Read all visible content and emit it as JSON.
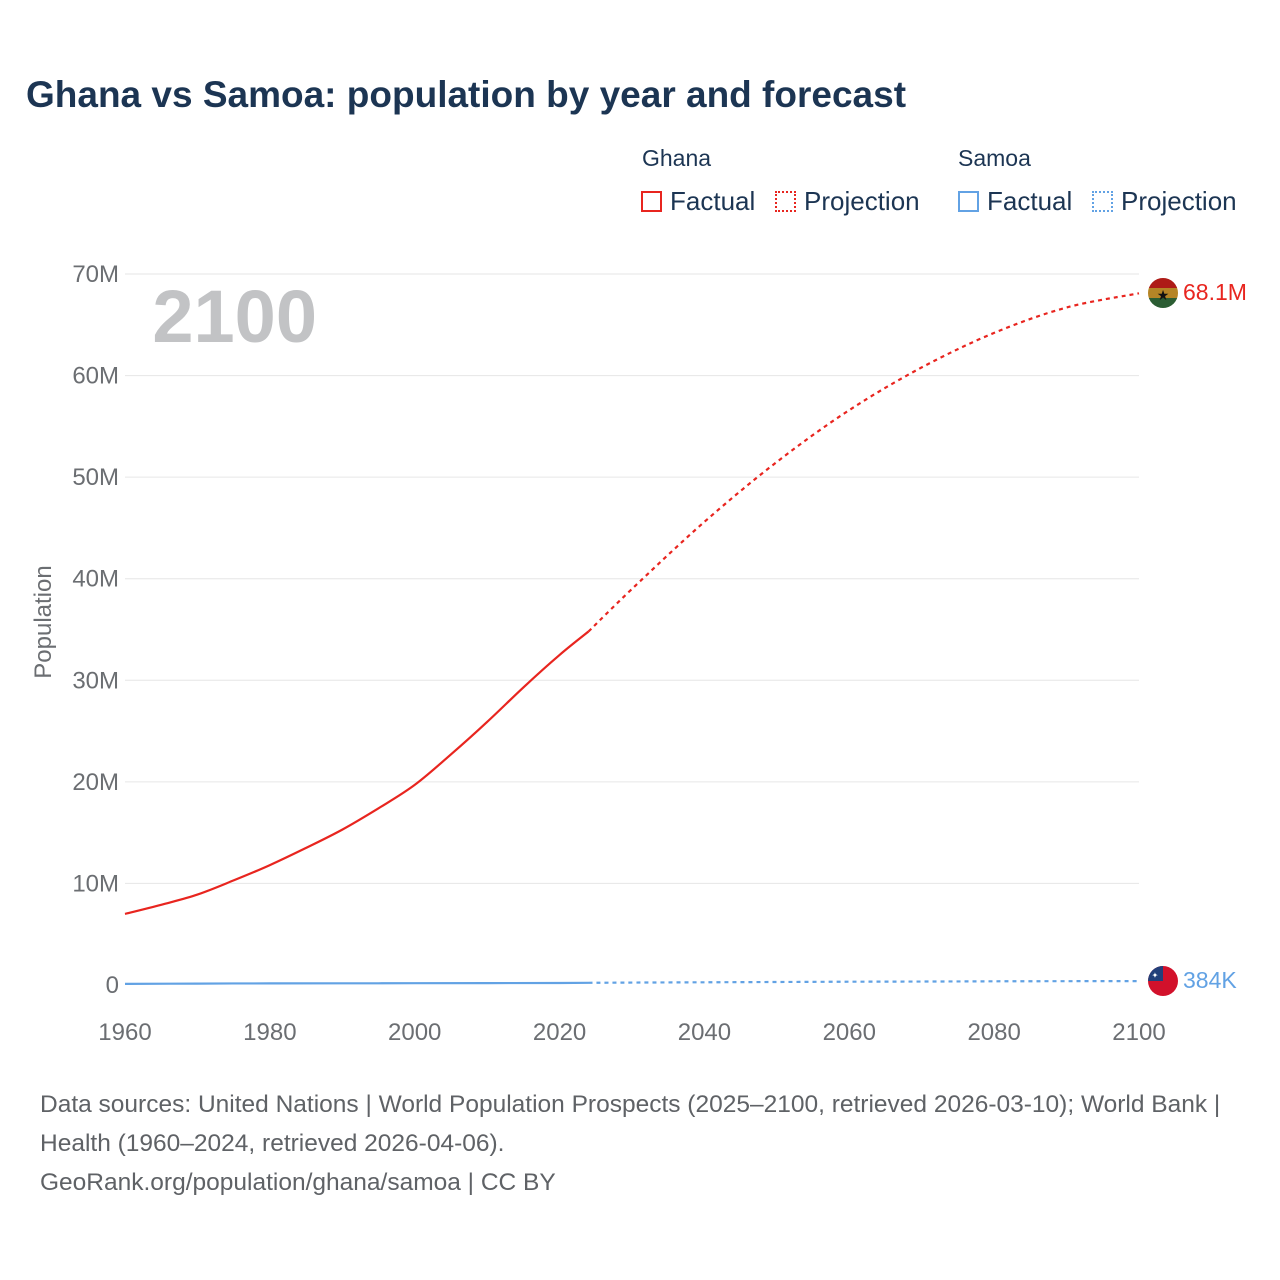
{
  "title": "Ghana vs Samoa: population by year and forecast",
  "legend": {
    "groups": [
      {
        "name": "Ghana",
        "color": "#e8251f",
        "items": [
          "Factual",
          "Projection"
        ]
      },
      {
        "name": "Samoa",
        "color": "#62a2e4",
        "items": [
          "Factual",
          "Projection"
        ]
      }
    ]
  },
  "year_label": "2100",
  "end_labels": {
    "ghana": "68.1M",
    "samoa": "384K"
  },
  "footer": {
    "sources": "Data sources: United Nations | World Population Prospects (2025–2100, retrieved 2026-03-10); World Bank | Health (1960–2024, retrieved 2026-04-06).",
    "credit": "GeoRank.org/population/ghana/samoa | CC BY"
  },
  "chart_data": {
    "type": "line",
    "title": "Ghana vs Samoa: population by year and forecast",
    "xlabel": "",
    "ylabel": "Population",
    "xlim": [
      1960,
      2100
    ],
    "ylim": [
      0,
      70000000
    ],
    "x_ticks": [
      1960,
      1980,
      2000,
      2020,
      2040,
      2060,
      2080,
      2100
    ],
    "y_ticks": [
      0,
      10000000,
      20000000,
      30000000,
      40000000,
      50000000,
      60000000,
      70000000
    ],
    "y_tick_labels": [
      "0",
      "10M",
      "20M",
      "30M",
      "40M",
      "50M",
      "60M",
      "70M"
    ],
    "grid": true,
    "series": [
      {
        "name": "Ghana — Factual",
        "color": "#e8251f",
        "dash": false,
        "x": [
          1960,
          1965,
          1970,
          1975,
          1980,
          1985,
          1990,
          1995,
          2000,
          2005,
          2010,
          2015,
          2020,
          2024
        ],
        "y": [
          7000000,
          7900000,
          8900000,
          10300000,
          11800000,
          13500000,
          15300000,
          17400000,
          19700000,
          22700000,
          25900000,
          29300000,
          32500000,
          34800000
        ]
      },
      {
        "name": "Ghana — Projection",
        "color": "#e8251f",
        "dash": true,
        "x": [
          2024,
          2030,
          2040,
          2050,
          2060,
          2070,
          2080,
          2090,
          2100
        ],
        "y": [
          34800000,
          39000000,
          45600000,
          51500000,
          56600000,
          60800000,
          64200000,
          66700000,
          68100000
        ]
      },
      {
        "name": "Samoa — Factual",
        "color": "#62a2e4",
        "dash": false,
        "x": [
          1960,
          1970,
          1980,
          1990,
          2000,
          2010,
          2020,
          2024
        ],
        "y": [
          110000,
          140000,
          160000,
          165000,
          175000,
          185000,
          200000,
          218000
        ]
      },
      {
        "name": "Samoa — Projection",
        "color": "#62a2e4",
        "dash": true,
        "x": [
          2024,
          2040,
          2060,
          2080,
          2100
        ],
        "y": [
          218000,
          270000,
          320000,
          360000,
          384000
        ]
      }
    ]
  }
}
